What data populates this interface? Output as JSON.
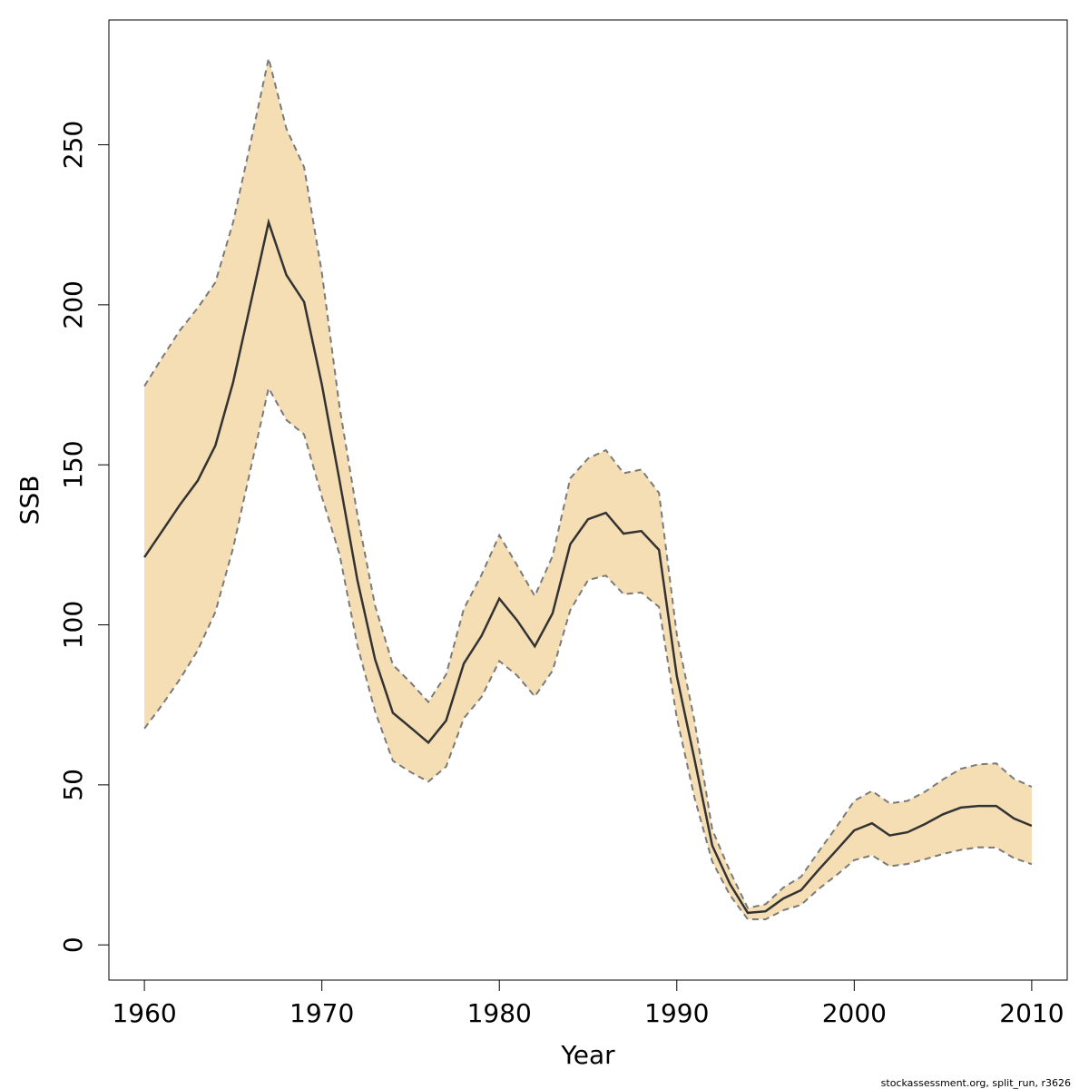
{
  "chart_data": {
    "type": "area",
    "xlabel": "Year",
    "ylabel": "SSB",
    "xlim": [
      1958,
      2012
    ],
    "ylim": [
      -11,
      289
    ],
    "x_ticks": [
      1960,
      1970,
      1980,
      1990,
      2000,
      2010
    ],
    "y_ticks": [
      0,
      50,
      100,
      150,
      200,
      250
    ],
    "grid": false,
    "legend": "none",
    "footer": "stockassessment.org, split_run, r3626",
    "colors": {
      "band": "#f5deb3",
      "line": "#333333",
      "bounds": "#7a7a7a",
      "frame": "#000000"
    },
    "x": [
      1960,
      1961,
      1962,
      1963,
      1964,
      1965,
      1966,
      1967,
      1968,
      1969,
      1970,
      1971,
      1972,
      1973,
      1974,
      1975,
      1976,
      1977,
      1978,
      1979,
      1980,
      1981,
      1982,
      1983,
      1984,
      1985,
      1986,
      1987,
      1988,
      1989,
      1990,
      1991,
      1992,
      1993,
      1994,
      1995,
      1996,
      1997,
      1998,
      1999,
      2000,
      2001,
      2002,
      2003,
      2004,
      2005,
      2006,
      2007,
      2008,
      2009,
      2010
    ],
    "series": [
      {
        "role": "estimate",
        "values": [
          121.1,
          129.3,
          137.5,
          145.0,
          156.0,
          175.8,
          200.7,
          225.8,
          209.3,
          200.9,
          175.0,
          145.0,
          114.0,
          89.2,
          72.5,
          67.9,
          63.2,
          70.1,
          87.9,
          96.6,
          108.2,
          101.4,
          93.3,
          103.6,
          125.2,
          133.0,
          135.0,
          128.5,
          129.3,
          123.4,
          84.0,
          58.0,
          31.0,
          19.0,
          10.0,
          10.5,
          14.5,
          17.1,
          23.5,
          29.6,
          35.8,
          38.0,
          34.2,
          35.2,
          37.8,
          40.8,
          42.9,
          43.4,
          43.4,
          39.5,
          37.2
        ]
      },
      {
        "role": "upper",
        "values": [
          174.6,
          183.5,
          192.0,
          199.0,
          207.0,
          225.8,
          251.0,
          277.0,
          255.0,
          243.0,
          210.0,
          168.0,
          134.4,
          106.0,
          87.5,
          82.0,
          75.9,
          84.5,
          105.0,
          115.7,
          128.0,
          118.6,
          109.0,
          121.5,
          145.8,
          152.0,
          154.6,
          147.4,
          148.5,
          141.2,
          97.0,
          70.0,
          36.0,
          23.0,
          11.5,
          12.7,
          17.9,
          21.3,
          29.2,
          36.9,
          45.0,
          48.1,
          44.2,
          45.0,
          47.9,
          51.7,
          55.0,
          56.4,
          56.7,
          51.9,
          49.4
        ]
      },
      {
        "role": "lower",
        "values": [
          67.6,
          75.0,
          83.0,
          92.0,
          104.0,
          124.0,
          149.0,
          174.0,
          164.0,
          159.5,
          140.0,
          122.0,
          93.6,
          73.0,
          57.5,
          54.0,
          51.0,
          55.7,
          70.8,
          77.5,
          88.7,
          84.2,
          77.6,
          85.7,
          104.6,
          114.0,
          115.4,
          109.6,
          110.1,
          105.6,
          71.0,
          46.0,
          26.0,
          15.5,
          8.0,
          8.0,
          10.8,
          12.5,
          17.5,
          21.8,
          26.5,
          28.0,
          24.6,
          25.3,
          26.8,
          28.4,
          29.7,
          30.5,
          30.4,
          27.1,
          25.2
        ]
      }
    ]
  }
}
